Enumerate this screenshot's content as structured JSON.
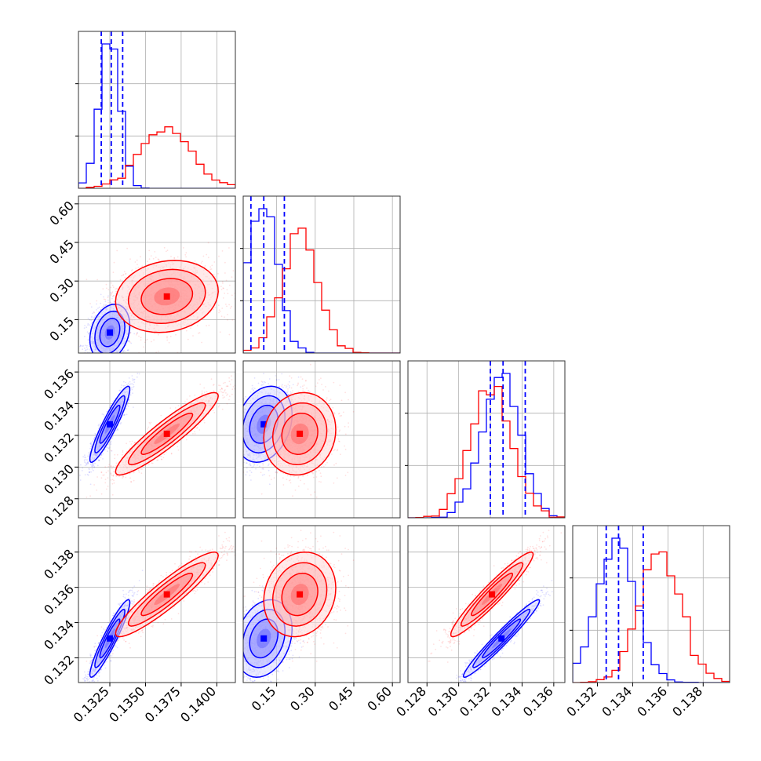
{
  "chart_data": {
    "type": "corner",
    "colors": {
      "series_a": "#0000ff",
      "series_b": "#ff0000",
      "grid": "#b0b0b0",
      "frame": "#333333"
    },
    "grid": true,
    "parameters": [
      {
        "range": [
          0.1303,
          0.1413
        ],
        "ticks": [
          0.1325,
          0.135,
          0.1375,
          0.14
        ],
        "tick_labels": [
          "0.1325",
          "0.1350",
          "0.1375",
          "0.1400"
        ]
      },
      {
        "range": [
          0.02,
          0.63
        ],
        "ticks": [
          0.15,
          0.3,
          0.45,
          0.6
        ],
        "tick_labels": [
          "0.15",
          "0.30",
          "0.45",
          "0.60"
        ]
      },
      {
        "range": [
          0.1268,
          0.1367
        ],
        "ticks": [
          0.128,
          0.13,
          0.132,
          0.134,
          0.136
        ],
        "tick_labels": [
          "0.128",
          "0.130",
          "0.132",
          "0.134",
          "0.136"
        ]
      },
      {
        "range": [
          0.1306,
          0.1395
        ],
        "ticks": [
          0.132,
          0.134,
          0.136,
          0.138
        ],
        "tick_labels": [
          "0.132",
          "0.134",
          "0.136",
          "0.138"
        ]
      }
    ],
    "series": [
      {
        "color": "#0000ff",
        "mean": [
          0.1325,
          0.1,
          0.1327,
          0.1331
        ],
        "sd": [
          0.0007,
          0.055,
          0.0012,
          0.0011
        ],
        "quantiles": [
          [
            0.1319,
            0.1326,
            0.1334
          ],
          [
            0.05,
            0.1,
            0.18
          ],
          [
            0.132,
            0.1328,
            0.1342
          ],
          [
            0.1325,
            0.1332,
            0.1346
          ]
        ],
        "correlation": [
          [
            1.0,
            0.25,
            0.92,
            0.93
          ],
          [
            0.25,
            1.0,
            0.25,
            0.25
          ],
          [
            0.92,
            0.25,
            1.0,
            0.97
          ],
          [
            0.93,
            0.25,
            0.97,
            1.0
          ]
        ]
      },
      {
        "color": "#ff0000",
        "mean": [
          0.1365,
          0.24,
          0.1321,
          0.1356
        ],
        "sd": [
          0.0018,
          0.07,
          0.0013,
          0.0012
        ],
        "correlation": [
          [
            1.0,
            0.15,
            0.92,
            0.92
          ],
          [
            0.15,
            1.0,
            0.1,
            0.15
          ],
          [
            0.92,
            0.1,
            1.0,
            0.95
          ],
          [
            0.92,
            0.15,
            0.95,
            1.0
          ]
        ]
      }
    ]
  }
}
